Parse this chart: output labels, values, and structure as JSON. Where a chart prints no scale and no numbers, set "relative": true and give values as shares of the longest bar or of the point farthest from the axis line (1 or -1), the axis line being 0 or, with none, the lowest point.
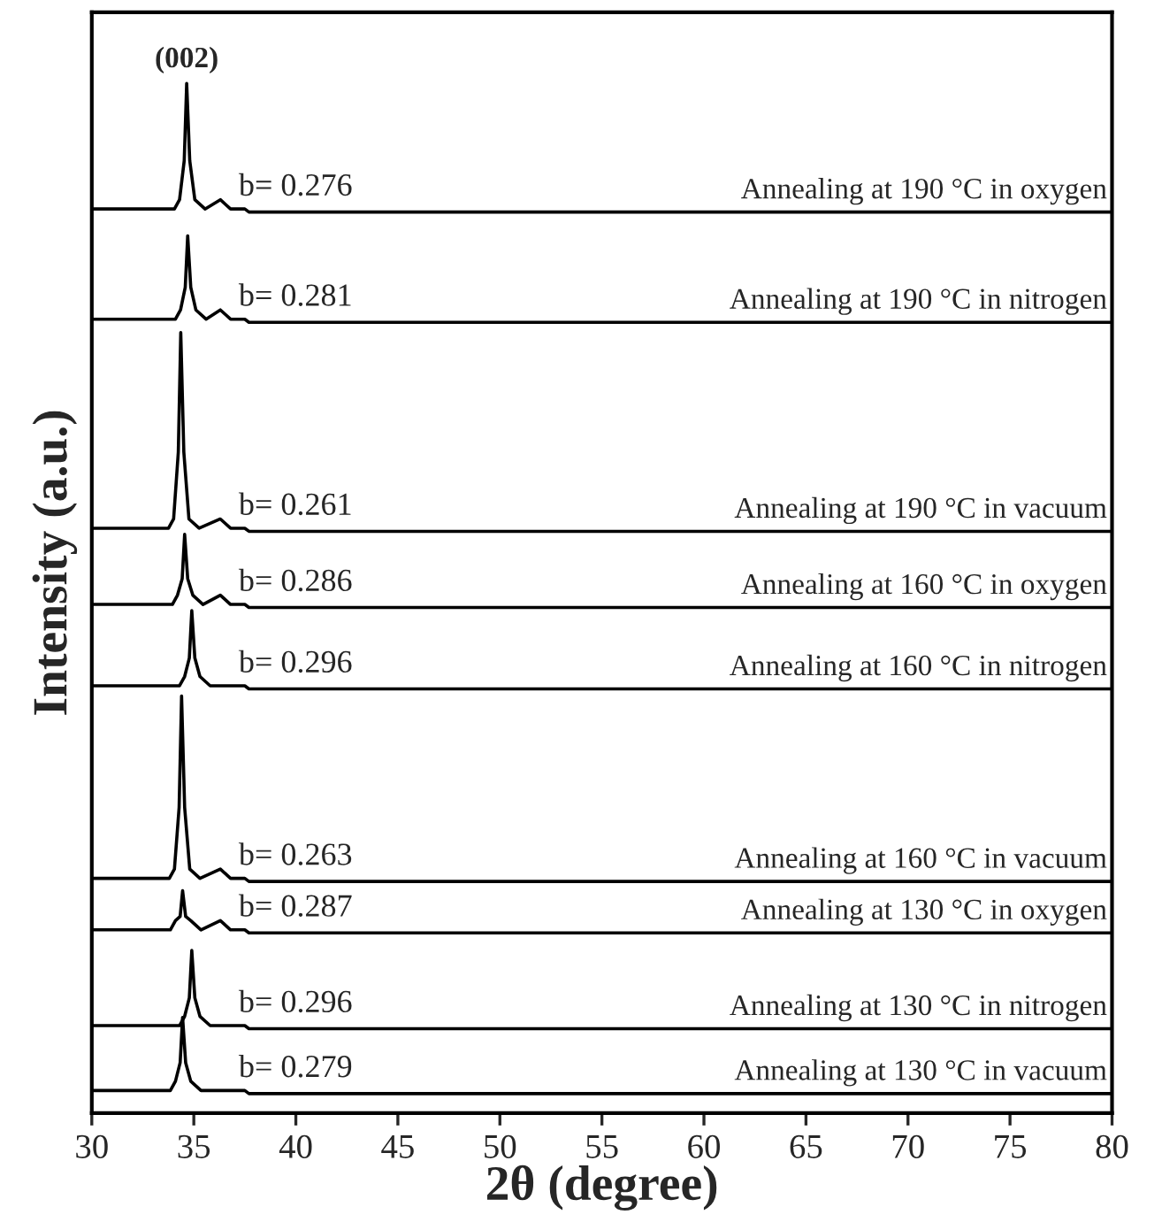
{
  "chart_data": {
    "type": "line",
    "relative": true,
    "xlabel": "2θ (degree)",
    "ylabel": "Intensity (a.u.)",
    "xlim": [
      30,
      80
    ],
    "xticks": [
      30,
      35,
      40,
      45,
      50,
      55,
      60,
      65,
      70,
      75,
      80
    ],
    "grid": false,
    "legend": false,
    "tick_labels": "x",
    "series": [
      {
        "name": "Annealing at 190 °C in oxygen",
        "color": "#000000",
        "x": [
          30,
          34.05,
          34.3,
          34.53,
          34.65,
          34.8,
          35.05,
          35.55,
          36.3,
          36.8,
          37.5,
          37.7,
          80
        ],
        "values": [
          0.878,
          0.878,
          0.887,
          0.925,
          1.0,
          0.925,
          0.887,
          0.878,
          0.887,
          0.878,
          0.878,
          0.875,
          0.875
        ]
      },
      {
        "name": "Annealing at 190 °C in nitrogen",
        "color": "#000000",
        "x": [
          30,
          34.1,
          34.35,
          34.58,
          34.7,
          34.85,
          35.1,
          35.6,
          36.3,
          36.8,
          37.5,
          37.7,
          80
        ],
        "values": [
          0.771,
          0.771,
          0.78,
          0.802,
          0.852,
          0.802,
          0.78,
          0.771,
          0.78,
          0.771,
          0.771,
          0.768,
          0.768
        ]
      },
      {
        "name": "Annealing at 190 °C in vacuum",
        "color": "#000000",
        "x": [
          30,
          33.76,
          34.01,
          34.24,
          34.36,
          34.51,
          34.76,
          35.26,
          36.3,
          36.8,
          37.5,
          37.7,
          80
        ],
        "values": [
          0.568,
          0.568,
          0.577,
          0.642,
          0.758,
          0.642,
          0.577,
          0.568,
          0.577,
          0.568,
          0.568,
          0.565,
          0.565
        ]
      },
      {
        "name": "Annealing at 160 °C in oxygen",
        "color": "#000000",
        "x": [
          30,
          33.95,
          34.2,
          34.43,
          34.55,
          34.7,
          34.95,
          35.45,
          36.3,
          36.8,
          37.5,
          37.7,
          80
        ],
        "values": [
          0.494,
          0.494,
          0.503,
          0.519,
          0.562,
          0.519,
          0.503,
          0.494,
          0.503,
          0.494,
          0.494,
          0.491,
          0.491
        ]
      },
      {
        "name": "Annealing at 160 °C in nitrogen",
        "color": "#000000",
        "x": [
          30,
          34.3,
          34.55,
          34.78,
          34.9,
          35.05,
          35.3,
          35.8,
          36.3,
          36.8,
          37.5,
          37.7,
          80
        ],
        "values": [
          0.415,
          0.415,
          0.424,
          0.442,
          0.488,
          0.442,
          0.424,
          0.415,
          0.415,
          0.415,
          0.415,
          0.412,
          0.412
        ]
      },
      {
        "name": "Annealing at 160 °C in vacuum",
        "color": "#000000",
        "x": [
          30,
          33.8,
          34.05,
          34.28,
          34.4,
          34.55,
          34.8,
          35.3,
          36.3,
          36.8,
          37.5,
          37.7,
          80
        ],
        "values": [
          0.228,
          0.228,
          0.237,
          0.297,
          0.405,
          0.297,
          0.237,
          0.228,
          0.237,
          0.228,
          0.228,
          0.225,
          0.225
        ]
      },
      {
        "name": "Annealing at 130 °C in oxygen",
        "color": "#000000",
        "x": [
          30,
          33.85,
          34.1,
          34.33,
          34.45,
          34.6,
          34.85,
          35.35,
          36.3,
          36.8,
          37.5,
          37.7,
          80
        ],
        "values": [
          0.178,
          0.178,
          0.187,
          0.191,
          0.216,
          0.191,
          0.187,
          0.178,
          0.187,
          0.178,
          0.178,
          0.175,
          0.175
        ]
      },
      {
        "name": "Annealing at 130 °C in nitrogen",
        "color": "#000000",
        "x": [
          30,
          34.3,
          34.55,
          34.78,
          34.9,
          35.05,
          35.3,
          35.8,
          36.3,
          36.8,
          37.5,
          37.7,
          80
        ],
        "values": [
          0.085,
          0.085,
          0.094,
          0.112,
          0.158,
          0.112,
          0.094,
          0.085,
          0.085,
          0.085,
          0.085,
          0.082,
          0.082
        ]
      },
      {
        "name": "Annealing at 130 °C in vacuum",
        "color": "#000000",
        "x": [
          30,
          33.85,
          34.1,
          34.33,
          34.45,
          34.6,
          34.85,
          35.35,
          36.3,
          36.8,
          37.5,
          37.7,
          80
        ],
        "values": [
          0.022,
          0.022,
          0.031,
          0.049,
          0.093,
          0.049,
          0.031,
          0.022,
          0.022,
          0.022,
          0.022,
          0.019,
          0.019
        ]
      }
    ],
    "annotations": [
      "(002)",
      "b= 0.276",
      "b= 0.281",
      "b= 0.261",
      "b= 0.286",
      "b= 0.296",
      "b= 0.263",
      "b= 0.287",
      "b= 0.296",
      "b= 0.279"
    ]
  }
}
